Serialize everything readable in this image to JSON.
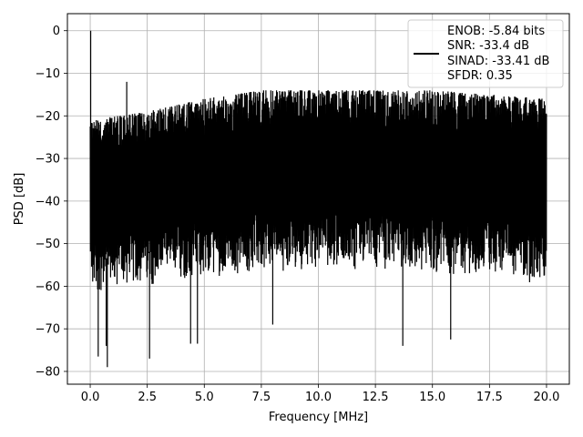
{
  "chart_data": {
    "type": "line",
    "xlabel": "Frequency [MHz]",
    "ylabel": "PSD [dB]",
    "xlim": [
      -1.0,
      21.0
    ],
    "ylim": [
      -83.0,
      4.0
    ],
    "xticks": [
      0.0,
      2.5,
      5.0,
      7.5,
      10.0,
      12.5,
      15.0,
      17.5,
      20.0
    ],
    "xtick_labels": [
      "0.0",
      "2.5",
      "5.0",
      "7.5",
      "10.0",
      "12.5",
      "15.0",
      "17.5",
      "20.0"
    ],
    "yticks": [
      0,
      -10,
      -20,
      -30,
      -40,
      -50,
      -60,
      -70,
      -80
    ],
    "ytick_labels": [
      "0",
      "−10",
      "−20",
      "−30",
      "−40",
      "−50",
      "−60",
      "−70",
      "−80"
    ],
    "grid": true,
    "legend": {
      "placement": "top-right",
      "entries": [
        "ENOB: -5.84 bits",
        "SNR: -33.4 dB",
        "SINAD: -33.41 dB",
        "SFDR: 0.35"
      ]
    },
    "series": [
      {
        "color": "#000000",
        "x_range": [
          0.0,
          20.0
        ],
        "noise_floor_envelope": {
          "x": [
            0.0,
            2.5,
            5.0,
            7.5,
            10.0,
            12.5,
            15.0,
            17.5,
            20.0
          ],
          "upper": [
            -21,
            -19,
            -16,
            -14,
            -14,
            -14,
            -14,
            -15,
            -16
          ],
          "lower": [
            -62,
            -60,
            -58,
            -57,
            -56,
            -56,
            -57,
            -58,
            -60
          ]
        },
        "peaks": [
          {
            "x": 0.02,
            "y": 0.0
          },
          {
            "x": 1.6,
            "y": -12.0
          }
        ],
        "deep_notches": [
          {
            "x": 0.35,
            "y": -76.5
          },
          {
            "x": 0.75,
            "y": -79.0
          },
          {
            "x": 0.7,
            "y": -74.0
          },
          {
            "x": 2.6,
            "y": -77.0
          },
          {
            "x": 4.4,
            "y": -73.5
          },
          {
            "x": 4.7,
            "y": -73.5
          },
          {
            "x": 8.0,
            "y": -69.0
          },
          {
            "x": 13.7,
            "y": -74.0
          },
          {
            "x": 15.8,
            "y": -72.5
          }
        ]
      }
    ]
  }
}
